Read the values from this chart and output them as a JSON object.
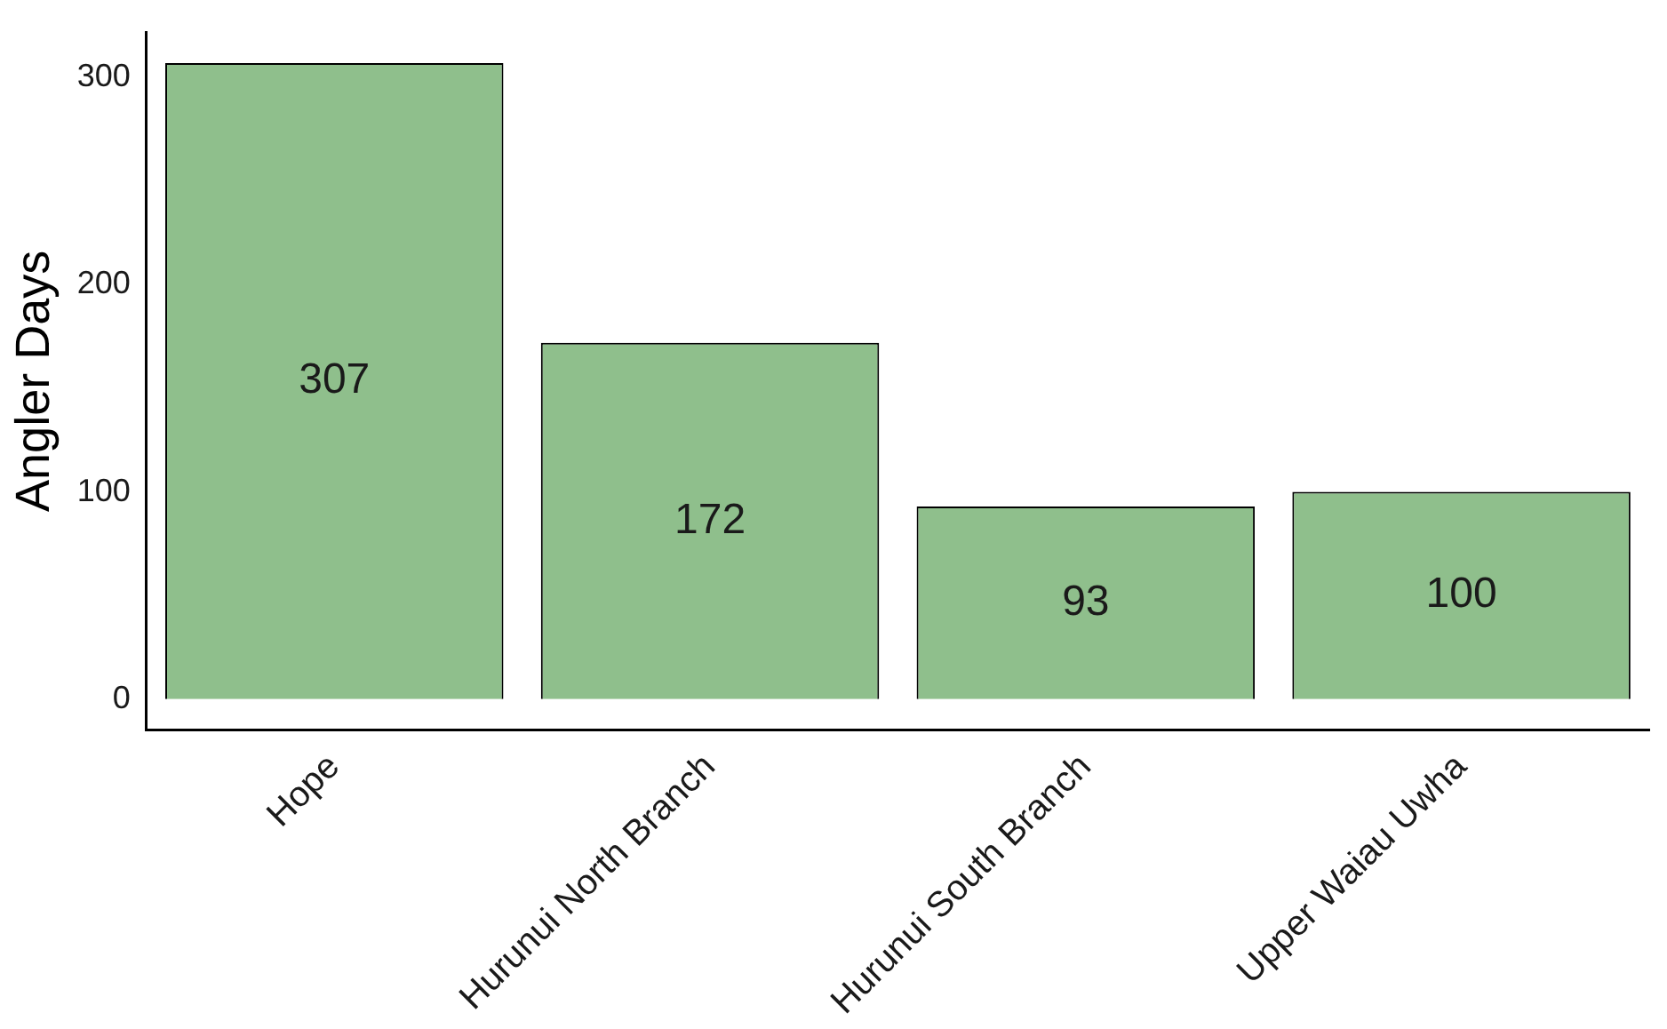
{
  "chart_data": {
    "type": "bar",
    "ylabel": "Angler Days",
    "categories": [
      "Hope",
      "Hurunui North Branch",
      "Hurunui South Branch",
      "Upper Waiau Uwha"
    ],
    "values": [
      307,
      172,
      93,
      100
    ],
    "color": "#8fbf8c",
    "ylim": [
      -15,
      322
    ],
    "yticks": [
      0,
      100,
      200,
      300
    ],
    "grid": false,
    "legend": false,
    "data_labels": true
  }
}
